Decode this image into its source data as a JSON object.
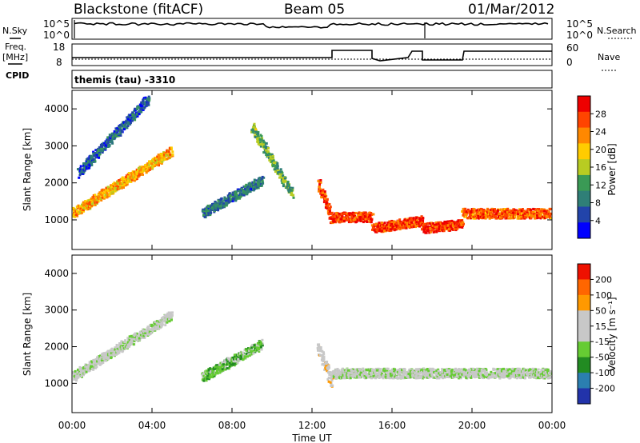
{
  "header": {
    "station": "Blackstone (fitACF)",
    "beam": "Beam 05",
    "date": "01/Mar/2012"
  },
  "status_panel": {
    "left_labels": {
      "nsky": "N.Sky",
      "freq": "Freq.",
      "freq_unit": "[MHz]",
      "cpid": "CPID"
    },
    "right_labels": {
      "nsearch": "N.Search",
      "nave": "Nave"
    },
    "noise_ticks": [
      "10^5",
      "10^0"
    ],
    "freq_ticks": [
      "18",
      "8"
    ],
    "nave_ticks": [
      "60",
      "0"
    ],
    "cpid_text": "themis (tau) -3310"
  },
  "colors": {
    "power_scale": [
      "#0000ff",
      "#2244aa",
      "#2f7f77",
      "#3a9a55",
      "#b8cc22",
      "#ffcc00",
      "#ff8800",
      "#ff4400",
      "#ee0000"
    ],
    "velocity_scale": [
      "#2233aa",
      "#2b7fb0",
      "#228b22",
      "#66cc33",
      "#c8c8c8",
      "#c8c8c8",
      "#ff9900",
      "#ff6600",
      "#ee1100"
    ]
  },
  "chart_data": [
    {
      "type": "heatmap",
      "title": "",
      "ylabel": "Slant Range [km]",
      "xlabel": "Time UT",
      "ylim": [
        200,
        4500
      ],
      "y_ticks": [
        "4000",
        "3000",
        "2000",
        "1000"
      ],
      "x_ticks": [
        "00:00",
        "04:00",
        "08:00",
        "12:00",
        "16:00",
        "20:00",
        "00:00"
      ],
      "colorbar": {
        "label": "Power [dB]",
        "ticks": [
          "28",
          "24",
          "20",
          "16",
          "12",
          "8",
          "4"
        ],
        "range": [
          0,
          30
        ]
      },
      "features": [
        {
          "t_start": 0.0,
          "t_end": 5.0,
          "r_start": 1200,
          "r_end": 2900,
          "value": 20
        },
        {
          "t_start": 0.3,
          "t_end": 3.8,
          "r_start": 2300,
          "r_end": 4300,
          "value": 6
        },
        {
          "t_start": 6.5,
          "t_end": 9.5,
          "r_start": 1200,
          "r_end": 2100,
          "value": 8
        },
        {
          "t_start": 9.0,
          "t_end": 11.0,
          "r_start": 3500,
          "r_end": 1700,
          "value": 12
        },
        {
          "t_start": 12.3,
          "t_end": 13.0,
          "r_start": 2000,
          "r_end": 1000,
          "value": 26
        },
        {
          "t_start": 13.0,
          "t_end": 15.0,
          "r_start": 1100,
          "r_end": 1100,
          "value": 26
        },
        {
          "t_start": 15.0,
          "t_end": 17.5,
          "r_start": 800,
          "r_end": 1000,
          "value": 26
        },
        {
          "t_start": 17.5,
          "t_end": 19.5,
          "r_start": 800,
          "r_end": 900,
          "value": 26
        },
        {
          "t_start": 19.5,
          "t_end": 24.0,
          "r_start": 1200,
          "r_end": 1200,
          "value": 24
        }
      ]
    },
    {
      "type": "heatmap",
      "title": "",
      "ylabel": "Slant Range [km]",
      "xlabel": "Time UT",
      "ylim": [
        200,
        4500
      ],
      "y_ticks": [
        "4000",
        "3000",
        "2000",
        "1000"
      ],
      "x_ticks": [
        "00:00",
        "04:00",
        "08:00",
        "12:00",
        "16:00",
        "20:00",
        "00:00"
      ],
      "colorbar": {
        "label": "Velocity [m s⁻¹]",
        "ticks": [
          "200",
          "100",
          "50",
          "15",
          "-15",
          "-50",
          "-100",
          "-200"
        ],
        "range": [
          -250,
          250
        ]
      },
      "features": [
        {
          "t_start": 0.0,
          "t_end": 5.0,
          "r_start": 1200,
          "r_end": 2900,
          "value": 0
        },
        {
          "t_start": 6.5,
          "t_end": 9.5,
          "r_start": 1200,
          "r_end": 2100,
          "value": -60
        },
        {
          "t_start": 12.3,
          "t_end": 13.0,
          "r_start": 2000,
          "r_end": 1000,
          "value": 40
        },
        {
          "t_start": 13.0,
          "t_end": 24.0,
          "r_start": 1300,
          "r_end": 1300,
          "value": 0
        }
      ]
    }
  ]
}
